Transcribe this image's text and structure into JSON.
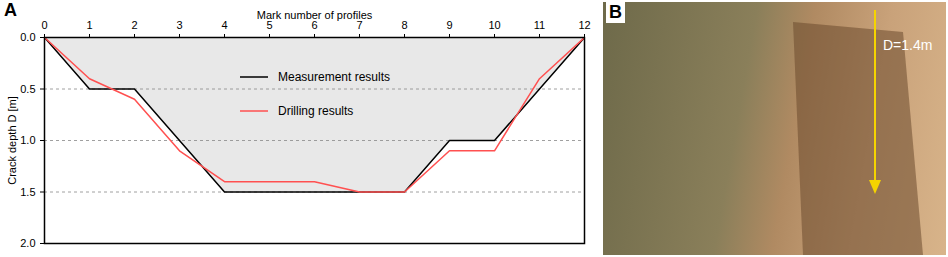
{
  "chart_data": {
    "type": "line",
    "panel_label": "A",
    "x_label": "Mark number of profiles",
    "y_label": "Crack depth D [m]",
    "x": [
      0,
      1,
      2,
      3,
      4,
      5,
      6,
      7,
      8,
      9,
      10,
      11,
      12
    ],
    "series": [
      {
        "name": "Measurement results",
        "color": "#000000",
        "values": [
          0,
          0.5,
          0.5,
          1.0,
          1.5,
          1.5,
          1.5,
          1.5,
          1.5,
          1.0,
          1.0,
          0.5,
          0
        ]
      },
      {
        "name": "Drilling results",
        "color": "#ff5050",
        "values": [
          0,
          0.4,
          0.6,
          1.1,
          1.4,
          1.4,
          1.4,
          1.5,
          1.5,
          1.1,
          1.1,
          0.4,
          0
        ]
      }
    ],
    "xlim": [
      0,
      12
    ],
    "xticks": [
      0,
      1,
      2,
      3,
      4,
      5,
      6,
      7,
      8,
      9,
      10,
      11,
      12
    ],
    "ylim": [
      0,
      2
    ],
    "yticks": [
      {
        "value": 0,
        "label": "0.0"
      },
      {
        "value": 0.5,
        "label": "0.5"
      },
      {
        "value": 1,
        "label": "1.0"
      },
      {
        "value": 1.5,
        "label": "1.5"
      },
      {
        "value": 2,
        "label": "2.0"
      }
    ],
    "grid": true,
    "legend": "center"
  },
  "photo": {
    "panel_label": "B",
    "annotation": "D=1.4m"
  }
}
